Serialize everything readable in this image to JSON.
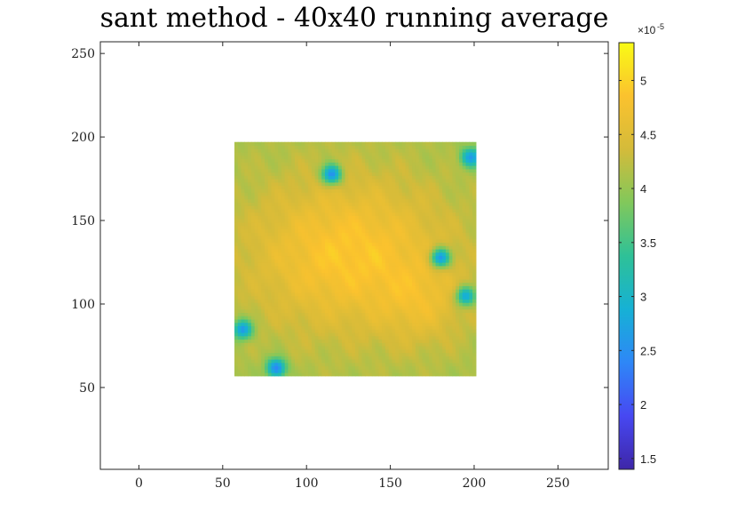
{
  "chart_data": {
    "type": "heatmap",
    "title": "sant method - 40x40 running average",
    "xlabel": "",
    "ylabel": "",
    "xlim": [
      -23,
      280
    ],
    "ylim": [
      1,
      257
    ],
    "xticks": [
      0,
      50,
      100,
      150,
      200,
      250
    ],
    "yticks": [
      50,
      100,
      150,
      200,
      250
    ],
    "xtick_labels": [
      "0",
      "50",
      "100",
      "150",
      "200",
      "250"
    ],
    "ytick_labels": [
      "50",
      "100",
      "150",
      "200",
      "250"
    ],
    "data_extent": {
      "x": [
        57,
        200
      ],
      "y": [
        57,
        197
      ]
    },
    "colorbar": {
      "clim": [
        1.4,
        5.35
      ],
      "ticks": [
        1.5,
        2,
        2.5,
        3,
        3.5,
        4,
        4.5,
        5
      ],
      "tick_labels": [
        "1.5",
        "2",
        "2.5",
        "3",
        "3.5",
        "4",
        "4.5",
        "5"
      ],
      "multiplier_base": "×10",
      "multiplier_exponent": "-5",
      "colormap": "parula",
      "colormap_stops": [
        "#3e26a8",
        "#4748f2",
        "#2e87f7",
        "#16b1d5",
        "#2ec197",
        "#81c85b",
        "#d4bb3a",
        "#fbc22e",
        "#f9fb15"
      ]
    },
    "field_summary": {
      "background_level": 4.1,
      "peak_level": 4.9,
      "peak_center": [
        125,
        130
      ],
      "secondary_peak_center": [
        170,
        100
      ],
      "low_patches": [
        {
          "x": 115,
          "y": 178,
          "level": 2.5
        },
        {
          "x": 198,
          "y": 188,
          "level": 2.6
        },
        {
          "x": 180,
          "y": 128,
          "level": 2.6
        },
        {
          "x": 62,
          "y": 85,
          "level": 2.6
        },
        {
          "x": 82,
          "y": 62,
          "level": 2.4
        },
        {
          "x": 195,
          "y": 105,
          "level": 2.8
        }
      ]
    },
    "grid": false,
    "legend": "none"
  }
}
